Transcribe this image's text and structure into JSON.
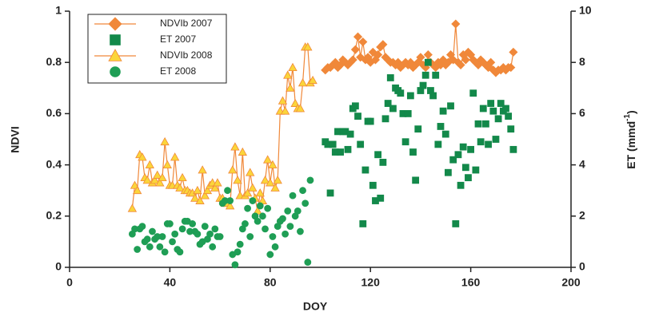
{
  "chart_data": {
    "type": "scatter",
    "xlabel": "DOY",
    "ylabel": "NDVI",
    "y2label": [
      "ET (mmd",
      "-1",
      ")"
    ],
    "xlim": [
      0,
      200
    ],
    "xticks": [
      0,
      40,
      80,
      120,
      160,
      200
    ],
    "ylim": [
      0,
      1
    ],
    "yticks": [
      0,
      0.2,
      0.4,
      0.6,
      0.8,
      1
    ],
    "y2lim": [
      0,
      10
    ],
    "y2ticks": [
      0,
      2,
      4,
      6,
      8,
      10
    ],
    "legend": "upper left",
    "grid": false,
    "series": [
      {
        "name": "NDVIb 2007",
        "color": "#f0883a",
        "marker": "diamond",
        "line": true,
        "x": [
          102,
          103,
          104,
          105,
          106,
          107,
          108,
          109,
          110,
          111,
          112,
          113,
          114,
          115,
          116,
          117,
          118,
          119,
          120,
          121,
          122,
          123,
          124,
          125,
          126,
          127,
          128,
          129,
          130,
          131,
          132,
          133,
          134,
          135,
          136,
          137,
          138,
          139,
          140,
          141,
          142,
          143,
          144,
          145,
          146,
          147,
          148,
          149,
          150,
          151,
          152,
          153,
          154,
          155,
          156,
          157,
          158,
          159,
          160,
          161,
          162,
          163,
          164,
          165,
          166,
          167,
          168,
          169,
          170,
          171,
          172,
          173,
          174,
          175,
          176,
          177
        ],
        "values": [
          0.77,
          0.78,
          0.78,
          0.79,
          0.8,
          0.78,
          0.79,
          0.81,
          0.8,
          0.79,
          0.8,
          0.81,
          0.85,
          0.9,
          0.82,
          0.88,
          0.81,
          0.82,
          0.8,
          0.84,
          0.81,
          0.83,
          0.86,
          0.87,
          0.82,
          0.81,
          0.8,
          0.8,
          0.79,
          0.8,
          0.78,
          0.79,
          0.8,
          0.79,
          0.8,
          0.78,
          0.79,
          0.8,
          0.82,
          0.79,
          0.78,
          0.83,
          0.8,
          0.79,
          0.78,
          0.8,
          0.79,
          0.81,
          0.79,
          0.8,
          0.83,
          0.81,
          0.95,
          0.8,
          0.79,
          0.83,
          0.81,
          0.84,
          0.83,
          0.81,
          0.8,
          0.79,
          0.81,
          0.8,
          0.79,
          0.78,
          0.8,
          0.77,
          0.76,
          0.77,
          0.77,
          0.78,
          0.77,
          0.78,
          0.78,
          0.84
        ]
      },
      {
        "name": "ET 2007",
        "color": "#13894a",
        "marker": "square",
        "line": false,
        "axis": "y2",
        "x": [
          102,
          103,
          104,
          105,
          106,
          107,
          108,
          109,
          110,
          111,
          112,
          113,
          114,
          115,
          116,
          117,
          118,
          119,
          120,
          121,
          122,
          123,
          124,
          125,
          126,
          127,
          128,
          129,
          130,
          131,
          132,
          133,
          134,
          135,
          136,
          137,
          138,
          139,
          140,
          141,
          142,
          143,
          144,
          145,
          146,
          147,
          148,
          149,
          150,
          151,
          152,
          153,
          154,
          155,
          156,
          157,
          158,
          159,
          160,
          161,
          162,
          163,
          164,
          165,
          166,
          167,
          168,
          169,
          170,
          171,
          172,
          173,
          174,
          175,
          176,
          177
        ],
        "values": [
          4.9,
          4.8,
          2.9,
          4.8,
          4.5,
          5.3,
          4.5,
          5.3,
          5.3,
          4.6,
          5.2,
          6.2,
          6.3,
          5.9,
          4.8,
          1.7,
          3.8,
          5.7,
          5.7,
          3.2,
          2.6,
          4.4,
          2.7,
          4.1,
          5.8,
          6.4,
          7.4,
          6.2,
          7.0,
          6.9,
          6.8,
          6.0,
          4.9,
          6.0,
          6.7,
          4.5,
          3.4,
          5.4,
          6.9,
          7.1,
          7.5,
          8.0,
          6.9,
          6.7,
          7.5,
          4.8,
          5.5,
          6.1,
          5.2,
          3.7,
          6.3,
          4.2,
          1.7,
          4.4,
          3.2,
          4.7,
          3.9,
          3.5,
          4.6,
          6.8,
          3.8,
          5.6,
          4.9,
          6.2,
          5.6,
          4.8,
          6.4,
          6.1,
          5.0,
          5.8,
          6.4,
          6.1,
          6.2,
          5.9,
          5.4,
          4.6
        ]
      },
      {
        "name": "NDVIb 2008",
        "color": "#f0883a",
        "fill": "#fbd53a",
        "marker": "triangle",
        "line": true,
        "x": [
          25,
          26,
          27,
          28,
          29,
          30,
          31,
          32,
          33,
          34,
          35,
          36,
          37,
          38,
          39,
          40,
          41,
          42,
          43,
          44,
          45,
          46,
          47,
          48,
          49,
          50,
          51,
          52,
          53,
          54,
          55,
          56,
          57,
          58,
          59,
          60,
          61,
          62,
          63,
          64,
          65,
          66,
          67,
          68,
          69,
          70,
          71,
          72,
          73,
          74,
          75,
          76,
          77,
          78,
          79,
          80,
          81,
          82,
          83,
          84,
          85,
          86,
          87,
          88,
          89,
          90,
          91,
          92,
          93,
          94,
          95,
          96,
          97
        ],
        "values": [
          0.23,
          0.32,
          0.3,
          0.44,
          0.43,
          0.35,
          0.34,
          0.4,
          0.33,
          0.34,
          0.36,
          0.33,
          0.35,
          0.49,
          0.4,
          0.32,
          0.32,
          0.43,
          0.32,
          0.31,
          0.35,
          0.3,
          0.3,
          0.29,
          0.29,
          0.27,
          0.3,
          0.26,
          0.38,
          0.28,
          0.3,
          0.32,
          0.33,
          0.31,
          0.33,
          0.27,
          0.27,
          0.25,
          0.25,
          0.24,
          0.38,
          0.47,
          0.34,
          0.28,
          0.45,
          0.28,
          0.29,
          0.37,
          0.31,
          0.27,
          0.22,
          0.29,
          0.26,
          0.34,
          0.42,
          0.33,
          0.4,
          0.31,
          0.34,
          0.61,
          0.65,
          0.61,
          0.75,
          0.7,
          0.78,
          0.64,
          0.62,
          0.62,
          0.72,
          0.86,
          0.86,
          0.72,
          0.73
        ]
      },
      {
        "name": "ET 2008",
        "color": "#1f9e55",
        "marker": "circle",
        "line": false,
        "axis": "y2",
        "x": [
          25,
          26,
          27,
          28,
          29,
          30,
          31,
          32,
          33,
          34,
          35,
          36,
          37,
          38,
          39,
          40,
          41,
          42,
          43,
          44,
          45,
          46,
          47,
          48,
          49,
          50,
          51,
          52,
          53,
          54,
          55,
          56,
          57,
          58,
          59,
          60,
          61,
          62,
          63,
          64,
          65,
          66,
          67,
          68,
          69,
          70,
          71,
          72,
          73,
          74,
          75,
          76,
          77,
          78,
          79,
          80,
          81,
          82,
          83,
          84,
          85,
          86,
          87,
          88,
          89,
          90,
          91,
          92,
          93,
          94,
          95,
          96
        ],
        "values": [
          1.3,
          1.5,
          0.7,
          1.5,
          1.6,
          1.0,
          1.1,
          0.8,
          1.4,
          1.1,
          1.2,
          0.8,
          1.2,
          0.6,
          1.7,
          1.7,
          1.0,
          1.3,
          0.7,
          0.6,
          1.5,
          1.8,
          1.8,
          1.4,
          1.7,
          1.4,
          1.3,
          0.9,
          1.0,
          1.6,
          1.1,
          1.3,
          0.8,
          1.5,
          1.2,
          1.2,
          2.5,
          2.6,
          3.0,
          2.6,
          0.5,
          0.1,
          0.6,
          0.9,
          1.5,
          1.7,
          2.3,
          1.2,
          2.6,
          2.0,
          1.8,
          2.4,
          2.0,
          1.5,
          2.3,
          0.5,
          1.2,
          0.8,
          1.6,
          1.8,
          1.9,
          1.3,
          2.2,
          1.6,
          2.8,
          2.0,
          2.2,
          1.4,
          3.0,
          2.5,
          0.2,
          3.4
        ]
      }
    ]
  }
}
